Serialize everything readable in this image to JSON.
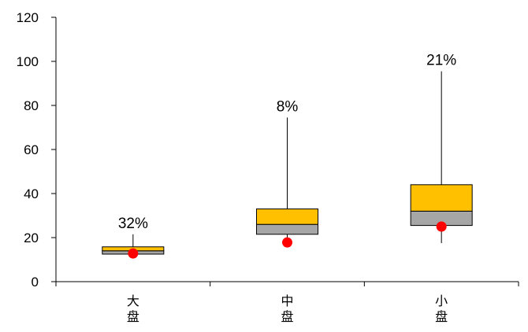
{
  "chart_data": {
    "type": "box",
    "categories": [
      "大盘",
      "中盘",
      "小盘"
    ],
    "ylim": [
      0,
      120
    ],
    "yticks": [
      0,
      20,
      40,
      60,
      80,
      100,
      120
    ],
    "boxes": [
      {
        "category": "大盘",
        "whisker_low": 10.5,
        "q1": 12.5,
        "median": 14,
        "q3": 15.8,
        "whisker_high": 21.5,
        "point": 12.8,
        "label": "32%"
      },
      {
        "category": "中盘",
        "whisker_low": 19,
        "q1": 21.5,
        "median": 26,
        "q3": 33,
        "whisker_high": 74.5,
        "point": 17.8,
        "label": "8%"
      },
      {
        "category": "小盘",
        "whisker_low": 17.5,
        "q1": 25.5,
        "median": 32,
        "q3": 44,
        "whisker_high": 95.5,
        "point": 25,
        "label": "21%"
      }
    ],
    "colors": {
      "upper_box": "#FFC000",
      "lower_box": "#A6A6A6",
      "point": "#FF0000",
      "axis": "#000000"
    }
  }
}
